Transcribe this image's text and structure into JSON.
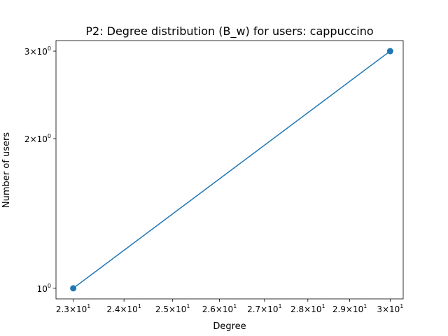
{
  "chart_data": {
    "type": "line",
    "title": "P2: Degree distribution (B_w) for users: cappuccino",
    "xlabel": "Degree",
    "ylabel": "Number of users",
    "x_scale": "log",
    "y_scale": "log",
    "xlim": [
      22.67,
      30.33
    ],
    "ylim": [
      0.952,
      3.15
    ],
    "x_ticks": [
      {
        "value": 23,
        "mantissa": "2.3",
        "base": "10",
        "exp": "1"
      },
      {
        "value": 24,
        "mantissa": "2.4",
        "base": "10",
        "exp": "1"
      },
      {
        "value": 25,
        "mantissa": "2.5",
        "base": "10",
        "exp": "1"
      },
      {
        "value": 26,
        "mantissa": "2.6",
        "base": "10",
        "exp": "1"
      },
      {
        "value": 27,
        "mantissa": "2.7",
        "base": "10",
        "exp": "1"
      },
      {
        "value": 28,
        "mantissa": "2.8",
        "base": "10",
        "exp": "1"
      },
      {
        "value": 29,
        "mantissa": "2.9",
        "base": "10",
        "exp": "1"
      },
      {
        "value": 30,
        "mantissa": "3",
        "base": "10",
        "exp": "1"
      }
    ],
    "y_ticks": [
      {
        "value": 1,
        "mantissa": "",
        "base": "10",
        "exp": "0"
      },
      {
        "value": 2,
        "mantissa": "2",
        "base": "10",
        "exp": "0"
      },
      {
        "value": 3,
        "mantissa": "3",
        "base": "10",
        "exp": "0"
      }
    ],
    "series": [
      {
        "x": [
          23,
          30
        ],
        "y": [
          1,
          3
        ],
        "color": "#1f77b4",
        "marker": "circle"
      }
    ],
    "grid": false,
    "legend": "none"
  }
}
